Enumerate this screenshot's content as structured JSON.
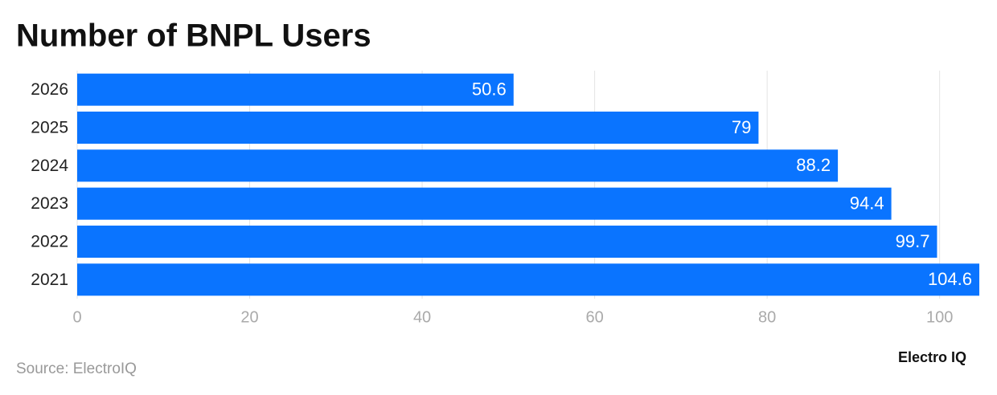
{
  "chart_data": {
    "type": "bar",
    "orientation": "horizontal",
    "title": "Number of BNPL Users",
    "categories": [
      "2026",
      "2025",
      "2024",
      "2023",
      "2022",
      "2021"
    ],
    "values": [
      50.6,
      79,
      88.2,
      94.4,
      99.7,
      104.6
    ],
    "color": "#0a74ff",
    "xlim": [
      0,
      104.6
    ],
    "xticks": [
      0,
      20,
      40,
      60,
      80,
      100
    ],
    "grid": true,
    "source": "Source: ElectroIQ",
    "brand": "Electro IQ"
  }
}
